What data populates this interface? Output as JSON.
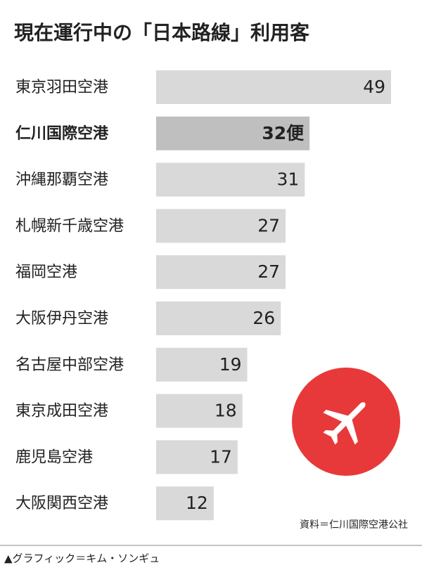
{
  "chart_data": {
    "type": "hbar",
    "title": "現在運行中の「日本路線」利用客",
    "categories": [
      "東京羽田空港",
      "仁川国際空港",
      "沖縄那覇空港",
      "札幌新千歳空港",
      "福岡空港",
      "大阪伊丹空港",
      "名古屋中部空港",
      "東京成田空港",
      "鹿児島空港",
      "大阪関西空港"
    ],
    "values": [
      49,
      32,
      31,
      27,
      27,
      26,
      19,
      18,
      17,
      12
    ],
    "value_labels": [
      "49",
      "32便",
      "31",
      "27",
      "27",
      "26",
      "19",
      "18",
      "17",
      "12"
    ],
    "color": "#d9d9d9",
    "highlight_color": "#bfbfbf",
    "highlight_index": 1,
    "source": "資料＝仁川国際空港公社",
    "credit": "▲グラフィック＝キム・ソンギュ"
  }
}
